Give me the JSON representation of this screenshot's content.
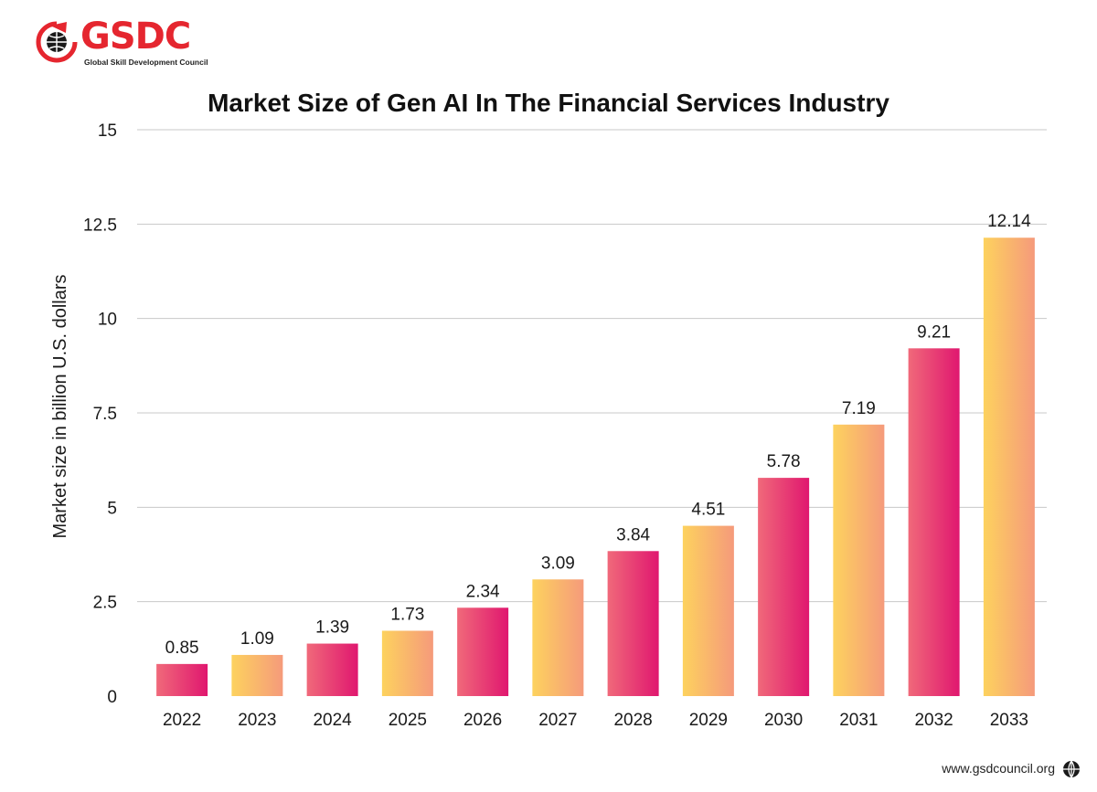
{
  "brand": {
    "name": "GSDC",
    "tagline": "Global Skill Development Council"
  },
  "footer": {
    "url": "www.gsdcouncil.org",
    "icon": "globe-icon"
  },
  "colors": {
    "brand_red": "#e5262f",
    "pink_start": "#f0697a",
    "pink_end": "#e0176f",
    "gold_start": "#fdd25e",
    "gold_end": "#f59a7b",
    "grid": "#c8c8c8"
  },
  "chart_data": {
    "type": "bar",
    "title": "Market Size of Gen AI In The Financial Services Industry",
    "xlabel": "",
    "ylabel": "Market size in billion U.S. dollars",
    "categories": [
      "2022",
      "2023",
      "2024",
      "2025",
      "2026",
      "2027",
      "2028",
      "2029",
      "2030",
      "2031",
      "2032",
      "2033"
    ],
    "values": [
      0.85,
      1.09,
      1.39,
      1.73,
      2.34,
      3.09,
      3.84,
      4.51,
      5.78,
      7.19,
      9.21,
      12.14
    ],
    "value_labels": [
      "0.85",
      "1.09",
      "1.39",
      "1.73",
      "2.34",
      "3.09",
      "3.84",
      "4.51",
      "5.78",
      "7.19",
      "9.21",
      "12.14"
    ],
    "bar_styles": [
      "pink",
      "gold",
      "pink",
      "gold",
      "pink",
      "gold",
      "pink",
      "gold",
      "pink",
      "gold",
      "pink",
      "gold"
    ],
    "ylim": [
      0,
      15
    ],
    "yticks": [
      "0",
      "2.5",
      "5",
      "7.5",
      "10",
      "12.5",
      "15"
    ],
    "grid": true,
    "legend": "none"
  }
}
